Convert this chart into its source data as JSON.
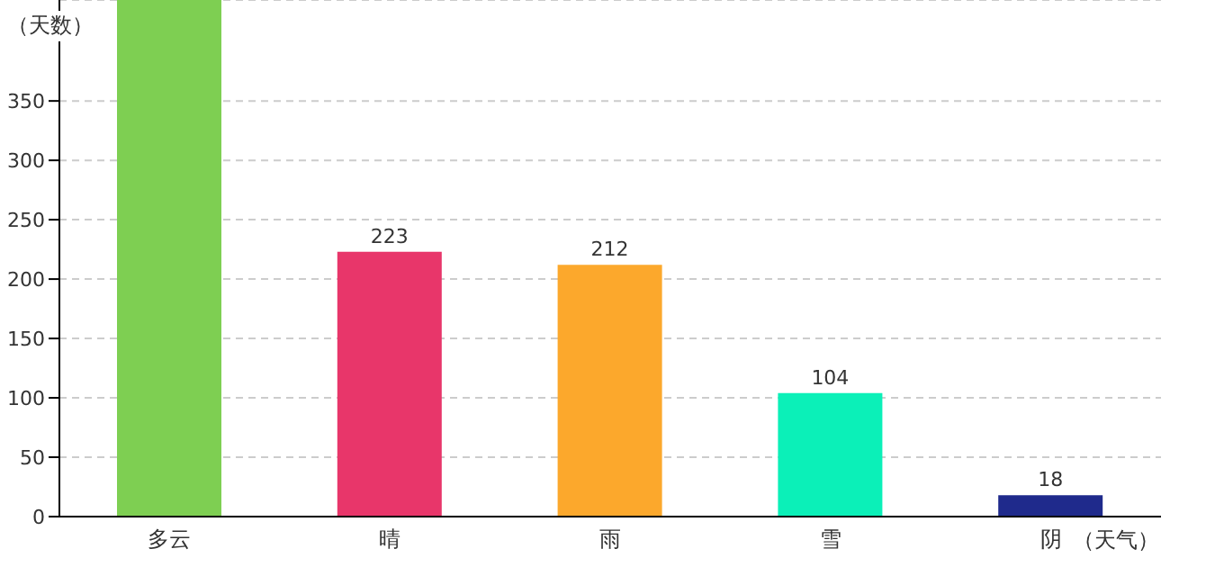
{
  "chart_data": {
    "type": "bar",
    "xlabel": "（天气）",
    "ylabel": "（天数）",
    "categories": [
      "多云",
      "晴",
      "雨",
      "雪",
      "阴"
    ],
    "values": [
      435,
      223,
      212,
      104,
      18
    ],
    "colors": [
      "#7ecf52",
      "#e8366a",
      "#fca82c",
      "#0bf0b8",
      "#1f2a8c"
    ],
    "value_labels": [
      null,
      "223",
      "212",
      "104",
      "18"
    ],
    "ylim": [
      0,
      435
    ],
    "yticks": [
      0,
      50,
      100,
      150,
      200,
      250,
      300,
      350
    ],
    "grid": "y"
  }
}
